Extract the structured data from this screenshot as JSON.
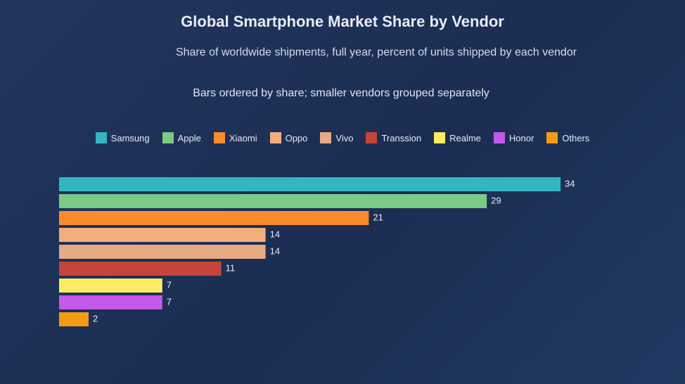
{
  "chart_data": {
    "type": "bar",
    "orientation": "horizontal",
    "title": "Global Smartphone Market Share by Vendor",
    "subtitle": "Share of worldwide shipments, full year, percent of units shipped by each vendor",
    "note": "Bars ordered by share; smaller vendors grouped separately",
    "categories": [
      "Samsung",
      "Apple",
      "Xiaomi",
      "Oppo",
      "Vivo",
      "Transsion",
      "Realme",
      "Honor",
      "Others"
    ],
    "values": [
      34,
      29,
      21,
      14,
      14,
      11,
      7,
      7,
      2
    ],
    "colors": [
      "#35b5c4",
      "#7acb85",
      "#fb8c2e",
      "#f2ae7c",
      "#e8aa82",
      "#c6443a",
      "#fcec63",
      "#c45ae8",
      "#f39c12"
    ],
    "xlim": [
      0,
      35
    ]
  }
}
